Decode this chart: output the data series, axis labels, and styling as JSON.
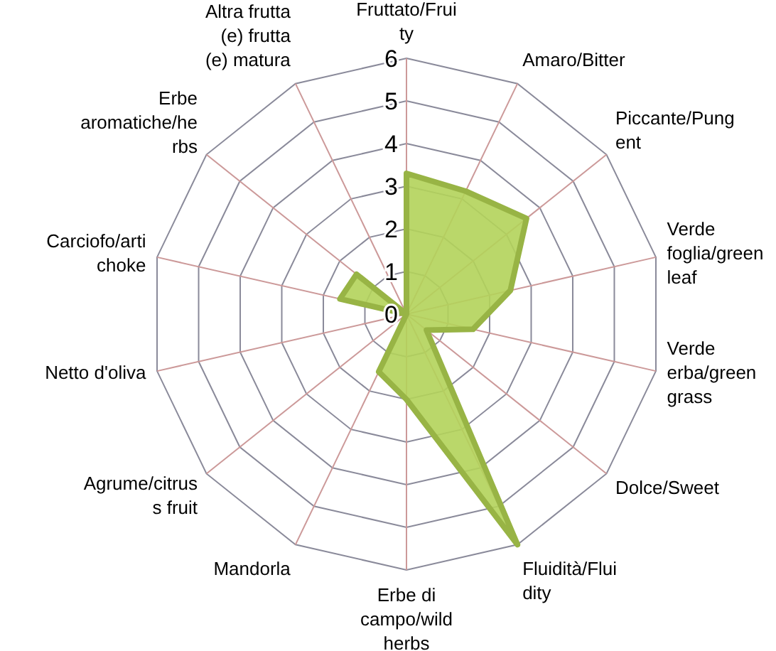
{
  "chart_data": {
    "type": "radar",
    "categories": [
      "Fruttato/Fruity",
      "Amaro/Bitter",
      "Piccante/Pungent",
      "Verde foglia/green leaf",
      "Verde erba/green grass",
      "Dolce/Sweet",
      "Fluidità/Fluidity",
      "Erbe di campo/wild herbs",
      "Mandorla",
      "Agrume/citruss fruit",
      "Netto d'oliva",
      "Carciofo/artichoke",
      "Erbe aromatiche/herbs",
      "Altra frutta (e) frutta (e) matura"
    ],
    "series": [
      {
        "color": "#b3d35a",
        "values": [
          3.3,
          3.2,
          3.6,
          2.5,
          1.6,
          0.6,
          6,
          2,
          1.5,
          0,
          0,
          1.6,
          1.5,
          0
        ]
      }
    ],
    "ylim": [
      0,
      6
    ],
    "yticks": [
      0,
      1,
      2,
      3,
      4,
      5,
      6
    ]
  }
}
